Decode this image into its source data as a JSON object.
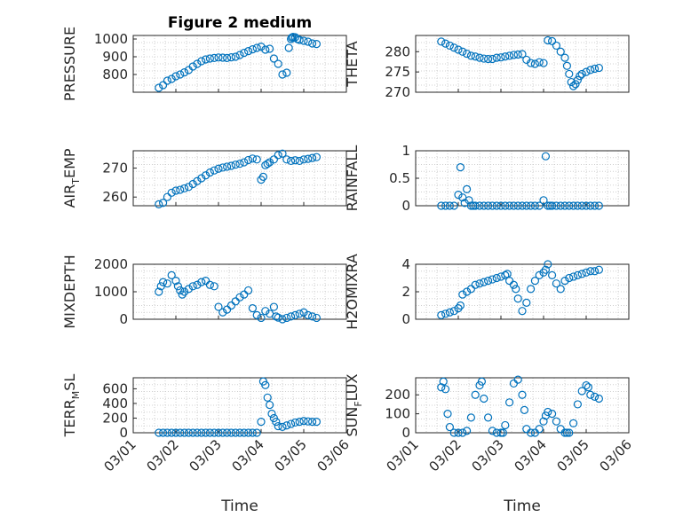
{
  "title": "Figure 2 medium",
  "chart_data": [
    {
      "type": "scatter",
      "ylabel": "PRESSURE",
      "xlabel": "",
      "title": "Figure 2 medium",
      "xlim": [
        0,
        5
      ],
      "ylim": [
        700,
        1020
      ],
      "yticks": [
        800,
        900,
        1000
      ],
      "x": [
        0.6,
        0.7,
        0.8,
        0.9,
        1.0,
        1.1,
        1.2,
        1.3,
        1.4,
        1.5,
        1.6,
        1.7,
        1.8,
        1.9,
        2.0,
        2.1,
        2.2,
        2.3,
        2.4,
        2.5,
        2.6,
        2.7,
        2.8,
        2.9,
        3.0,
        3.1,
        3.2,
        3.3,
        3.4,
        3.5,
        3.6,
        3.65,
        3.7,
        3.72,
        3.75,
        3.8,
        3.85,
        3.9,
        4.0,
        4.1,
        4.2,
        4.3
      ],
      "y": [
        725,
        740,
        765,
        775,
        790,
        800,
        812,
        825,
        845,
        860,
        875,
        885,
        890,
        893,
        896,
        895,
        893,
        897,
        900,
        910,
        922,
        932,
        942,
        950,
        957,
        940,
        945,
        890,
        860,
        800,
        810,
        950,
        1000,
        1008,
        1012,
        1010,
        1000,
        995,
        990,
        985,
        975,
        972
      ]
    },
    {
      "type": "scatter",
      "ylabel": "THETA",
      "xlabel": "",
      "xlim": [
        0,
        5
      ],
      "ylim": [
        270,
        284
      ],
      "yticks": [
        270,
        275,
        280
      ],
      "x": [
        0.6,
        0.7,
        0.8,
        0.9,
        1.0,
        1.1,
        1.2,
        1.3,
        1.4,
        1.5,
        1.6,
        1.7,
        1.8,
        1.9,
        2.0,
        2.1,
        2.2,
        2.3,
        2.4,
        2.5,
        2.6,
        2.7,
        2.8,
        2.9,
        3.0,
        3.1,
        3.2,
        3.3,
        3.4,
        3.5,
        3.55,
        3.6,
        3.65,
        3.7,
        3.75,
        3.8,
        3.85,
        3.9,
        4.0,
        4.1,
        4.2,
        4.3
      ],
      "y": [
        282.5,
        282,
        281.5,
        281,
        280.5,
        280,
        279.5,
        279,
        278.8,
        278.5,
        278.3,
        278.2,
        278.2,
        278.5,
        278.6,
        278.8,
        279,
        279.2,
        279.3,
        279.4,
        278,
        277.2,
        277,
        277.4,
        277.2,
        282.8,
        282.6,
        281.5,
        280,
        278.5,
        276.5,
        274.5,
        272.5,
        271.5,
        272,
        273,
        274,
        274.5,
        275,
        275.5,
        275.8,
        276
      ]
    },
    {
      "type": "scatter",
      "ylabel": "AIR_TEMP",
      "xlabel": "",
      "xlim": [
        0,
        5
      ],
      "ylim": [
        257,
        276
      ],
      "yticks": [
        260,
        270
      ],
      "x": [
        0.6,
        0.7,
        0.8,
        0.9,
        1.0,
        1.1,
        1.2,
        1.3,
        1.4,
        1.5,
        1.6,
        1.7,
        1.8,
        1.9,
        2.0,
        2.1,
        2.2,
        2.3,
        2.4,
        2.5,
        2.6,
        2.7,
        2.8,
        2.9,
        3.0,
        3.05,
        3.1,
        3.15,
        3.2,
        3.3,
        3.4,
        3.5,
        3.6,
        3.7,
        3.8,
        3.9,
        4.0,
        4.1,
        4.2,
        4.3
      ],
      "y": [
        257.5,
        258,
        260,
        261.5,
        262.2,
        262.5,
        263,
        263.5,
        264.5,
        265.5,
        266.5,
        267.5,
        268.5,
        269.2,
        269.8,
        270.2,
        270.5,
        270.8,
        271.2,
        271.5,
        272,
        272.8,
        273.3,
        273,
        266,
        267,
        271,
        271.5,
        272,
        273,
        274.5,
        275,
        273,
        272.5,
        272.7,
        272.5,
        273,
        273.2,
        273.5,
        273.8
      ]
    },
    {
      "type": "scatter",
      "ylabel": "RAINFALL",
      "xlabel": "",
      "xlim": [
        0,
        5
      ],
      "ylim": [
        0,
        1
      ],
      "yticks": [
        0,
        0.5,
        1
      ],
      "x": [
        0.6,
        0.7,
        0.8,
        0.9,
        1.0,
        1.05,
        1.1,
        1.15,
        1.2,
        1.25,
        1.3,
        1.35,
        1.4,
        1.5,
        1.6,
        1.7,
        1.8,
        1.9,
        2.0,
        2.1,
        2.2,
        2.3,
        2.4,
        2.5,
        2.6,
        2.7,
        2.8,
        2.9,
        3.0,
        3.05,
        3.1,
        3.15,
        3.2,
        3.3,
        3.4,
        3.5,
        3.6,
        3.7,
        3.8,
        3.9,
        4.0,
        4.1,
        4.2,
        4.3
      ],
      "y": [
        0,
        0,
        0,
        0,
        0.2,
        0.7,
        0.15,
        0.05,
        0.3,
        0.1,
        0,
        0,
        0,
        0,
        0,
        0,
        0,
        0,
        0,
        0,
        0,
        0,
        0,
        0,
        0,
        0,
        0,
        0,
        0.1,
        0.9,
        0,
        0,
        0,
        0,
        0,
        0,
        0,
        0,
        0,
        0,
        0,
        0,
        0,
        0
      ]
    },
    {
      "type": "scatter",
      "ylabel": "MIXDEPTH",
      "xlabel": "",
      "xlim": [
        0,
        5
      ],
      "ylim": [
        0,
        2000
      ],
      "yticks": [
        0,
        1000,
        2000
      ],
      "x": [
        0.6,
        0.65,
        0.7,
        0.8,
        0.9,
        1.0,
        1.05,
        1.1,
        1.15,
        1.2,
        1.3,
        1.4,
        1.5,
        1.6,
        1.7,
        1.8,
        1.9,
        2.0,
        2.1,
        2.2,
        2.3,
        2.4,
        2.5,
        2.6,
        2.7,
        2.8,
        2.9,
        3.0,
        3.1,
        3.2,
        3.3,
        3.35,
        3.4,
        3.5,
        3.6,
        3.7,
        3.8,
        3.9,
        4.0,
        4.1,
        4.2,
        4.3
      ],
      "y": [
        1000,
        1200,
        1350,
        1300,
        1600,
        1400,
        1200,
        1050,
        900,
        1000,
        1100,
        1200,
        1250,
        1350,
        1400,
        1250,
        1200,
        450,
        250,
        350,
        500,
        650,
        800,
        900,
        1050,
        400,
        150,
        50,
        300,
        200,
        450,
        100,
        60,
        0,
        50,
        100,
        150,
        200,
        250,
        150,
        100,
        50
      ]
    },
    {
      "type": "scatter",
      "ylabel": "H2OMIXRA",
      "xlabel": "",
      "xlim": [
        0,
        5
      ],
      "ylim": [
        0,
        4
      ],
      "yticks": [
        0,
        2,
        4
      ],
      "x": [
        0.6,
        0.7,
        0.8,
        0.9,
        1.0,
        1.05,
        1.1,
        1.2,
        1.3,
        1.4,
        1.5,
        1.6,
        1.7,
        1.8,
        1.9,
        2.0,
        2.1,
        2.15,
        2.2,
        2.3,
        2.35,
        2.4,
        2.5,
        2.6,
        2.7,
        2.8,
        2.9,
        3.0,
        3.05,
        3.1,
        3.2,
        3.3,
        3.4,
        3.5,
        3.6,
        3.7,
        3.8,
        3.9,
        4.0,
        4.1,
        4.2,
        4.3
      ],
      "y": [
        0.3,
        0.4,
        0.5,
        0.6,
        0.8,
        1.0,
        1.8,
        2.0,
        2.2,
        2.5,
        2.6,
        2.7,
        2.8,
        2.9,
        3.0,
        3.1,
        3.2,
        3.3,
        2.8,
        2.5,
        2.2,
        1.5,
        0.6,
        1.2,
        2.2,
        2.8,
        3.2,
        3.4,
        3.6,
        4.0,
        3.2,
        2.6,
        2.2,
        2.8,
        3.0,
        3.1,
        3.2,
        3.3,
        3.4,
        3.5,
        3.5,
        3.6
      ]
    },
    {
      "type": "scatter",
      "ylabel": "TERR_MSL",
      "xlabel": "Time",
      "xlim": [
        0,
        5
      ],
      "ylim": [
        0,
        750
      ],
      "yticks": [
        0,
        200,
        400,
        600
      ],
      "xticklabels": [
        "03/01",
        "03/02",
        "03/03",
        "03/04",
        "03/05",
        "03/06"
      ],
      "x": [
        0.6,
        0.7,
        0.8,
        0.9,
        1.0,
        1.1,
        1.2,
        1.3,
        1.4,
        1.5,
        1.6,
        1.7,
        1.8,
        1.9,
        2.0,
        2.1,
        2.2,
        2.3,
        2.4,
        2.5,
        2.6,
        2.7,
        2.8,
        2.9,
        3.0,
        3.05,
        3.1,
        3.15,
        3.2,
        3.25,
        3.3,
        3.35,
        3.4,
        3.5,
        3.6,
        3.7,
        3.8,
        3.9,
        4.0,
        4.1,
        4.2,
        4.3
      ],
      "y": [
        0,
        0,
        0,
        0,
        0,
        0,
        0,
        0,
        0,
        0,
        0,
        0,
        0,
        0,
        0,
        0,
        0,
        0,
        0,
        0,
        0,
        0,
        0,
        0,
        150,
        700,
        650,
        480,
        380,
        260,
        200,
        150,
        90,
        80,
        100,
        120,
        140,
        150,
        160,
        155,
        150,
        150
      ]
    },
    {
      "type": "scatter",
      "ylabel": "SUN_FLUX",
      "xlabel": "Time",
      "xlim": [
        0,
        5
      ],
      "ylim": [
        0,
        290
      ],
      "yticks": [
        0,
        100,
        200
      ],
      "xticklabels": [
        "03/01",
        "03/02",
        "03/03",
        "03/04",
        "03/05",
        "03/06"
      ],
      "x": [
        0.6,
        0.65,
        0.7,
        0.75,
        0.8,
        0.9,
        1.0,
        1.1,
        1.2,
        1.3,
        1.4,
        1.5,
        1.55,
        1.6,
        1.7,
        1.8,
        1.9,
        2.0,
        2.05,
        2.1,
        2.2,
        2.3,
        2.4,
        2.5,
        2.55,
        2.6,
        2.7,
        2.8,
        2.9,
        3.0,
        3.05,
        3.1,
        3.2,
        3.3,
        3.4,
        3.5,
        3.55,
        3.6,
        3.7,
        3.8,
        3.9,
        4.0,
        4.05,
        4.1,
        4.2,
        4.3
      ],
      "y": [
        240,
        270,
        230,
        100,
        30,
        0,
        0,
        0,
        10,
        80,
        200,
        250,
        270,
        180,
        80,
        10,
        0,
        0,
        0,
        40,
        160,
        260,
        280,
        200,
        120,
        20,
        0,
        0,
        20,
        60,
        90,
        110,
        100,
        60,
        20,
        0,
        0,
        0,
        50,
        150,
        220,
        250,
        240,
        200,
        190,
        180
      ]
    }
  ]
}
